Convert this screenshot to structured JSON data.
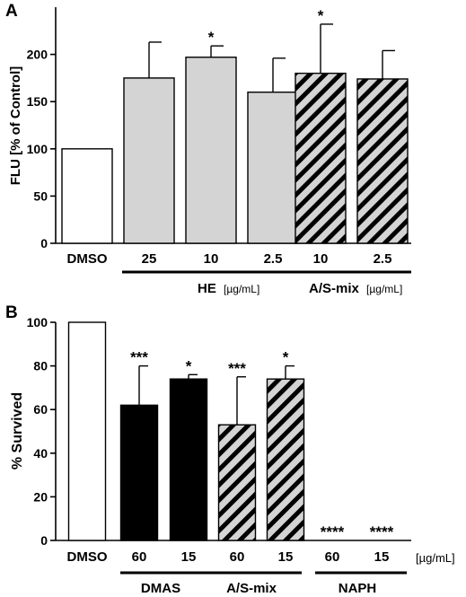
{
  "chart_data": [
    {
      "panel_label": "A",
      "type": "bar",
      "ylabel": "FLU [% of Control]",
      "ylim": [
        0,
        250
      ],
      "yticks": [
        "0",
        "50",
        "100",
        "150",
        "200"
      ],
      "categories": [
        "DMSO",
        "25",
        "10",
        "2.5",
        "10",
        "2.5"
      ],
      "values": [
        100,
        175,
        197,
        160,
        180,
        174
      ],
      "errors": [
        0,
        38,
        12,
        36,
        52,
        30
      ],
      "significance": [
        "",
        "",
        "*",
        "",
        "*",
        ""
      ],
      "fills": [
        "white",
        "gray",
        "gray",
        "gray",
        "hatched",
        "hatched"
      ],
      "groups": [
        {
          "name": "HE",
          "unit": "[µg/mL]"
        },
        {
          "name": "A/S-mix",
          "unit": "[µg/mL]"
        }
      ]
    },
    {
      "panel_label": "B",
      "type": "bar",
      "ylabel": "% Survived",
      "ylim": [
        0,
        100
      ],
      "yticks": [
        "0",
        "20",
        "40",
        "60",
        "80",
        "100"
      ],
      "categories": [
        "DMSO",
        "60",
        "15",
        "60",
        "15",
        "60",
        "15"
      ],
      "values": [
        100,
        62,
        74,
        53,
        74,
        0,
        0
      ],
      "errors": [
        0,
        18,
        2,
        22,
        6,
        0,
        0
      ],
      "significance": [
        "",
        "***",
        "*",
        "***",
        "*",
        "****",
        "****"
      ],
      "fills": [
        "white",
        "black",
        "black",
        "hatched",
        "hatched",
        "white",
        "white"
      ],
      "unit": "[µg/mL]",
      "groups": [
        {
          "name": "DMAS"
        },
        {
          "name": "A/S-mix"
        },
        {
          "name": "NAPH"
        }
      ]
    }
  ],
  "colors": {
    "gray": "#d4d4d4",
    "black": "#000000",
    "white": "#ffffff",
    "hatch_bg": "#d4d4d4",
    "hatch_line": "#000000"
  }
}
